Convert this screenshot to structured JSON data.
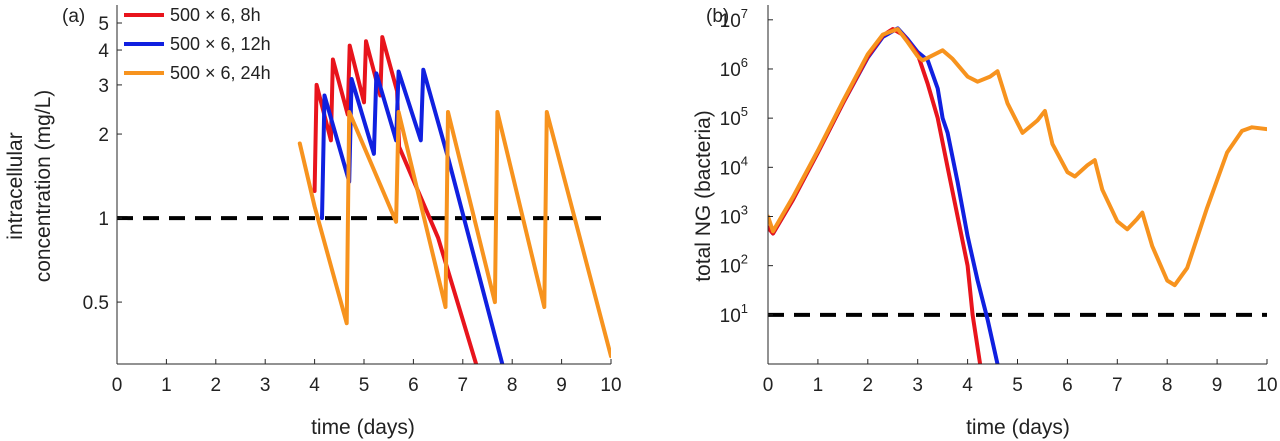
{
  "chart_data": [
    {
      "panel_label": "(a)",
      "type": "line",
      "xlabel": "time (days)",
      "ylabel": [
        "intracellular",
        "concentration (mg/L)"
      ],
      "y_scale": "log",
      "xlim": [
        0,
        10
      ],
      "ylim": [
        0.3,
        5.8
      ],
      "xticks": [
        0,
        1,
        2,
        3,
        4,
        5,
        6,
        7,
        8,
        9,
        10
      ],
      "xtick_labels": [
        "0",
        "1",
        "2",
        "3",
        "4",
        "5",
        "6",
        "7",
        "8",
        "9",
        "10"
      ],
      "yticks": [
        0.5,
        1,
        2,
        3,
        4,
        5
      ],
      "ytick_labels": [
        "0.5",
        "1",
        "2",
        "3",
        "4",
        "5"
      ],
      "legend": {
        "position": "top-left",
        "entries": [
          "500 × 6, 8h",
          "500 × 6, 12h",
          "500 × 6, 24h"
        ]
      },
      "reference_line": {
        "y": 1,
        "style": "dashed",
        "color": "#000000"
      },
      "series": [
        {
          "name": "500 × 6, 8h",
          "color": "#e8141c",
          "points": [
            [
              4.0,
              1.25
            ],
            [
              4.04,
              3.0
            ],
            [
              4.33,
              1.9
            ],
            [
              4.37,
              3.7
            ],
            [
              4.67,
              2.35
            ],
            [
              4.71,
              4.15
            ],
            [
              5.0,
              2.6
            ],
            [
              5.04,
              4.3
            ],
            [
              5.33,
              2.75
            ],
            [
              5.37,
              4.45
            ],
            [
              5.67,
              2.85
            ],
            [
              5.71,
              1.8
            ],
            [
              6.5,
              0.85
            ],
            [
              7.27,
              0.3
            ]
          ]
        },
        {
          "name": "500 × 6, 12h",
          "color": "#1020e0",
          "points": [
            [
              4.15,
              1.0
            ],
            [
              4.2,
              2.75
            ],
            [
              4.7,
              1.35
            ],
            [
              4.75,
              3.15
            ],
            [
              5.2,
              1.7
            ],
            [
              5.25,
              3.3
            ],
            [
              5.65,
              1.9
            ],
            [
              5.7,
              3.35
            ],
            [
              6.15,
              1.9
            ],
            [
              6.2,
              3.4
            ],
            [
              6.7,
              1.65
            ],
            [
              7.8,
              0.3
            ]
          ]
        },
        {
          "name": "500 × 6, 24h",
          "color": "#f7931e",
          "points": [
            [
              3.7,
              1.85
            ],
            [
              4.0,
              1.1
            ],
            [
              4.65,
              0.42
            ],
            [
              4.7,
              2.4
            ],
            [
              5.65,
              0.97
            ],
            [
              5.7,
              2.4
            ],
            [
              6.65,
              0.48
            ],
            [
              6.7,
              2.4
            ],
            [
              7.65,
              0.5
            ],
            [
              7.7,
              2.4
            ],
            [
              8.65,
              0.48
            ],
            [
              8.7,
              2.4
            ],
            [
              10.0,
              0.32
            ]
          ]
        }
      ]
    },
    {
      "panel_label": "(b)",
      "type": "line",
      "xlabel": "time (days)",
      "ylabel": "total NG (bacteria)",
      "y_scale": "log",
      "xlim": [
        0,
        10
      ],
      "ylim": [
        1,
        20000000
      ],
      "xticks": [
        0,
        1,
        2,
        3,
        4,
        5,
        6,
        7,
        8,
        9,
        10
      ],
      "xtick_labels": [
        "0",
        "1",
        "2",
        "3",
        "4",
        "5",
        "6",
        "7",
        "8",
        "9",
        "10"
      ],
      "yticks": [
        10,
        100,
        1000,
        10000,
        100000,
        1000000,
        10000000
      ],
      "ytick_labels": [
        {
          "base": "10",
          "exp": "1"
        },
        {
          "base": "10",
          "exp": "2"
        },
        {
          "base": "10",
          "exp": "3"
        },
        {
          "base": "10",
          "exp": "4"
        },
        {
          "base": "10",
          "exp": "5"
        },
        {
          "base": "10",
          "exp": "6"
        },
        {
          "base": "10",
          "exp": "7"
        }
      ],
      "reference_line": {
        "y": 10,
        "style": "dashed",
        "color": "#000000"
      },
      "series": [
        {
          "name": "500 × 6, 12h",
          "color": "#1020e0",
          "points": [
            [
              0.0,
              600
            ],
            [
              0.1,
              450
            ],
            [
              0.5,
              2200
            ],
            [
              1.0,
              20000
            ],
            [
              1.5,
              200000
            ],
            [
              2.0,
              1700000
            ],
            [
              2.3,
              4500000
            ],
            [
              2.6,
              6700000
            ],
            [
              2.8,
              4000000
            ],
            [
              3.0,
              2200000
            ],
            [
              3.2,
              1500000
            ],
            [
              3.4,
              400000
            ],
            [
              3.5,
              100000
            ],
            [
              3.6,
              50000
            ],
            [
              3.8,
              5000
            ],
            [
              4.0,
              400
            ],
            [
              4.2,
              50
            ],
            [
              4.4,
              8
            ],
            [
              4.6,
              1
            ]
          ]
        },
        {
          "name": "500 × 6, 8h",
          "color": "#e8141c",
          "points": [
            [
              0.0,
              600
            ],
            [
              0.1,
              450
            ],
            [
              0.5,
              2200
            ],
            [
              1.0,
              20000
            ],
            [
              1.5,
              200000
            ],
            [
              2.0,
              1800000
            ],
            [
              2.3,
              4800000
            ],
            [
              2.5,
              6500000
            ],
            [
              2.7,
              5000000
            ],
            [
              3.0,
              2000000
            ],
            [
              3.2,
              500000
            ],
            [
              3.4,
              100000
            ],
            [
              3.6,
              10000
            ],
            [
              3.8,
              1000
            ],
            [
              4.0,
              100
            ],
            [
              4.1,
              10
            ],
            [
              4.25,
              1
            ]
          ]
        },
        {
          "name": "500 × 6, 24h",
          "color": "#f7931e",
          "points": [
            [
              0.0,
              1000
            ],
            [
              0.1,
              500
            ],
            [
              0.5,
              2500
            ],
            [
              1.0,
              22000
            ],
            [
              1.5,
              220000
            ],
            [
              2.0,
              2000000
            ],
            [
              2.3,
              5000000
            ],
            [
              2.6,
              6500000
            ],
            [
              2.8,
              3500000
            ],
            [
              3.0,
              1800000
            ],
            [
              3.1,
              1500000
            ],
            [
              3.3,
              1900000
            ],
            [
              3.5,
              2400000
            ],
            [
              3.7,
              1600000
            ],
            [
              4.0,
              700000
            ],
            [
              4.2,
              550000
            ],
            [
              4.45,
              700000
            ],
            [
              4.6,
              900000
            ],
            [
              4.8,
              200000
            ],
            [
              5.1,
              50000
            ],
            [
              5.4,
              90000
            ],
            [
              5.55,
              140000
            ],
            [
              5.7,
              30000
            ],
            [
              6.0,
              8000
            ],
            [
              6.15,
              6500
            ],
            [
              6.4,
              11000
            ],
            [
              6.55,
              14000
            ],
            [
              6.7,
              3500
            ],
            [
              7.0,
              800
            ],
            [
              7.2,
              550
            ],
            [
              7.4,
              900
            ],
            [
              7.5,
              1200
            ],
            [
              7.7,
              250
            ],
            [
              8.0,
              50
            ],
            [
              8.15,
              40
            ],
            [
              8.4,
              90
            ],
            [
              8.8,
              1500
            ],
            [
              9.2,
              20000
            ],
            [
              9.5,
              55000
            ],
            [
              9.7,
              65000
            ],
            [
              10.0,
              60000
            ]
          ]
        }
      ]
    }
  ]
}
